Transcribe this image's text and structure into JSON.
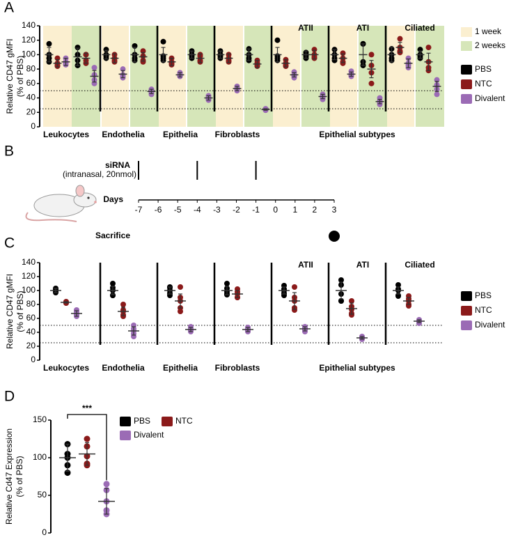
{
  "panel_labels": [
    "A",
    "B",
    "C",
    "D"
  ],
  "chart_data": [
    {
      "type": "dot",
      "ylabel": [
        "Relative CD47 gMFI",
        "(% of PBS)"
      ],
      "ylim": [
        0,
        140
      ],
      "yticks": [
        0,
        20,
        40,
        60,
        80,
        100,
        120,
        140
      ],
      "ref_lines": [
        50,
        25
      ],
      "categories": [
        "Leukocytes",
        "Endothelia",
        "Epithelia",
        "Fibroblasts",
        null,
        null,
        null
      ],
      "top_labels": [
        null,
        null,
        null,
        null,
        "ATII",
        "ATI",
        "Ciliated"
      ],
      "group_label": "Epithelial subtypes",
      "periods": [
        {
          "name": "1 week",
          "color": "#fbefd0"
        },
        {
          "name": "2 weeks",
          "color": "#d6e6b9"
        }
      ],
      "series": [
        {
          "name": "PBS",
          "color": "#000000",
          "values": [
            [
              100,
              97
            ],
            [
              100,
              100
            ],
            [
              100,
              100
            ],
            [
              100,
              100
            ],
            [
              100,
              100
            ],
            [
              100,
              100
            ],
            [
              100,
              100
            ]
          ],
          "errors": [
            [
              10,
              12
            ],
            [
              6,
              10
            ],
            [
              10,
              5
            ],
            [
              5,
              8
            ],
            [
              10,
              5
            ],
            [
              7,
              15
            ],
            [
              10,
              5
            ]
          ],
          "points": [
            [
              [
                115,
                95,
                90,
                100
              ],
              [
                110,
                100,
                85,
                92
              ]
            ],
            [
              [
                107,
                100,
                95,
                98
              ],
              [
                112,
                95,
                100,
                92
              ]
            ],
            [
              [
                118,
                98,
                92,
                95
              ],
              [
                105,
                98,
                100,
                95
              ]
            ],
            [
              [
                105,
                100,
                95,
                98
              ],
              [
                108,
                95,
                100,
                92
              ]
            ],
            [
              [
                120,
                95,
                92,
                98
              ],
              [
                103,
                98,
                95,
                100
              ]
            ],
            [
              [
                107,
                100,
                92,
                95
              ],
              [
                115,
                115,
                85,
                90
              ]
            ],
            [
              [
                108,
                92,
                100,
                95
              ],
              [
                107,
                100,
                95,
                98
              ]
            ]
          ]
        },
        {
          "name": "NTC",
          "color": "#8b1a1a",
          "values": [
            [
              88,
              95
            ],
            [
              95,
              97
            ],
            [
              90,
              95
            ],
            [
              95,
              87
            ],
            [
              88,
              100
            ],
            [
              95,
              80
            ],
            [
              110,
              90
            ]
          ],
          "errors": [
            [
              5,
              7
            ],
            [
              6,
              6
            ],
            [
              5,
              6
            ],
            [
              6,
              5
            ],
            [
              5,
              6
            ],
            [
              6,
              12
            ],
            [
              7,
              12
            ]
          ],
          "points": [
            [
              [
                95,
                85,
                88,
                84
              ],
              [
                100,
                100,
                92,
                88
              ]
            ],
            [
              [
                100,
                95,
                90,
                92
              ],
              [
                105,
                98,
                92,
                90
              ]
            ],
            [
              [
                95,
                90,
                88,
                86
              ],
              [
                100,
                98,
                92,
                90
              ]
            ],
            [
              [
                100,
                95,
                92,
                90
              ],
              [
                92,
                88,
                85,
                84
              ]
            ],
            [
              [
                93,
                88,
                85,
                84
              ],
              [
                107,
                100,
                97,
                95
              ]
            ],
            [
              [
                102,
                95,
                90,
                88
              ],
              [
                100,
                85,
                75,
                60
              ]
            ],
            [
              [
                122,
                110,
                105,
                103
              ],
              [
                110,
                90,
                82,
                78
              ]
            ]
          ]
        },
        {
          "name": "Divalent",
          "color": "#9b6bb5",
          "values": [
            [
              90,
              70
            ],
            [
              73,
              49
            ],
            [
              72,
              40
            ],
            [
              53,
              24
            ],
            [
              72,
              42
            ],
            [
              73,
              35
            ],
            [
              88,
              56
            ]
          ],
          "errors": [
            [
              5,
              8
            ],
            [
              5,
              3
            ],
            [
              3,
              3
            ],
            [
              3,
              1
            ],
            [
              3,
              3
            ],
            [
              3,
              3
            ],
            [
              6,
              7
            ]
          ],
          "points": [
            [
              [
                95,
                90,
                88,
                86
              ],
              [
                82,
                72,
                65,
                60
              ]
            ],
            [
              [
                80,
                72,
                70,
                68
              ],
              [
                52,
                50,
                47,
                45
              ]
            ],
            [
              [
                75,
                72,
                70,
                70
              ],
              [
                43,
                40,
                38,
                37
              ]
            ],
            [
              [
                56,
                53,
                51,
                50
              ],
              [
                25,
                24,
                23,
                23
              ]
            ],
            [
              [
                76,
                72,
                70,
                68
              ],
              [
                45,
                42,
                40,
                38
              ]
            ],
            [
              [
                77,
                73,
                71,
                70
              ],
              [
                40,
                36,
                33,
                31
              ]
            ],
            [
              [
                95,
                88,
                85,
                82
              ],
              [
                65,
                58,
                52,
                45
              ]
            ]
          ]
        }
      ]
    },
    {
      "type": "timeline",
      "xlabel": "Days",
      "xlim": [
        -7,
        3
      ],
      "xticks": [
        -7,
        -6,
        -5,
        -4,
        -3,
        -2,
        -1,
        0,
        1,
        2,
        3
      ],
      "events": [
        {
          "label": "siRNA",
          "sublabel": "(intranasal, 20nmol)",
          "x": [
            -7,
            -4,
            -1
          ]
        },
        {
          "label": "Sacrifice",
          "x": [
            3
          ]
        }
      ]
    },
    {
      "type": "dot",
      "ylabel": [
        "Relative CD47 gMFI",
        "(% of PBS)"
      ],
      "ylim": [
        0,
        140
      ],
      "yticks": [
        0,
        20,
        40,
        60,
        80,
        100,
        120,
        140
      ],
      "ref_lines": [
        50,
        25
      ],
      "categories": [
        "Leukocytes",
        "Endothelia",
        "Epithelia",
        "Fibroblasts",
        null,
        null,
        null
      ],
      "top_labels": [
        null,
        null,
        null,
        null,
        "ATII",
        "ATI",
        "Ciliated"
      ],
      "group_label": "Epithelial subtypes",
      "series": [
        {
          "name": "PBS",
          "color": "#000000",
          "values": [
            100,
            100,
            100,
            100,
            100,
            100,
            100
          ],
          "errors": [
            3,
            6,
            5,
            6,
            5,
            12,
            5
          ],
          "points": [
            [
              103,
              101,
              100,
              98,
              97
            ],
            [
              110,
              104,
              100,
              93,
              93
            ],
            [
              105,
              104,
              100,
              96,
              93
            ],
            [
              110,
              103,
              98,
              95,
              94
            ],
            [
              107,
              102,
              100,
              96,
              93
            ],
            [
              115,
              108,
              95,
              85,
              85
            ],
            [
              108,
              102,
              100,
              93,
              92
            ]
          ]
        },
        {
          "name": "NTC",
          "color": "#8b1a1a",
          "values": [
            83,
            70,
            85,
            95,
            85,
            74,
            85
          ],
          "errors": [
            1,
            6,
            10,
            5,
            12,
            8,
            5
          ],
          "points": [
            [
              84,
              83,
              83,
              82,
              82
            ],
            [
              80,
              72,
              70,
              65,
              63
            ],
            [
              105,
              90,
              85,
              75,
              70
            ],
            [
              102,
              98,
              95,
              90,
              90
            ],
            [
              105,
              90,
              85,
              75,
              72
            ],
            [
              85,
              77,
              73,
              67,
              65
            ],
            [
              92,
              88,
              85,
              80,
              78
            ]
          ]
        },
        {
          "name": "Divalent",
          "color": "#9b6bb5",
          "values": [
            67,
            42,
            44,
            44,
            45,
            32,
            56
          ],
          "errors": [
            4,
            6,
            3,
            3,
            3,
            2,
            2
          ],
          "points": [
            [
              72,
              70,
              67,
              65,
              63
            ],
            [
              50,
              45,
              42,
              38,
              34
            ],
            [
              48,
              46,
              44,
              42,
              41
            ],
            [
              47,
              45,
              44,
              42,
              41
            ],
            [
              48,
              46,
              45,
              43,
              41
            ],
            [
              34,
              33,
              32,
              31,
              30
            ],
            [
              58,
              57,
              56,
              54,
              53
            ]
          ]
        }
      ]
    },
    {
      "type": "dot",
      "ylabel": [
        "Relative Cd47 Expression",
        "(% of PBS)"
      ],
      "ylim": [
        0,
        150
      ],
      "yticks": [
        0,
        50,
        100,
        150
      ],
      "significance": "***",
      "categories": [
        null
      ],
      "series": [
        {
          "name": "PBS",
          "color": "#000000",
          "values": [
            100
          ],
          "errors": [
            18
          ],
          "points": [
            [
              118,
              105,
              100,
              90,
              80
            ]
          ]
        },
        {
          "name": "NTC",
          "color": "#8b1a1a",
          "values": [
            105
          ],
          "errors": [
            15
          ],
          "points": [
            [
              125,
              115,
              102,
              92,
              90
            ]
          ]
        },
        {
          "name": "Divalent",
          "color": "#9b6bb5",
          "values": [
            42
          ],
          "errors": [
            17
          ],
          "points": [
            [
              65,
              57,
              42,
              30,
              25
            ]
          ]
        }
      ]
    }
  ]
}
